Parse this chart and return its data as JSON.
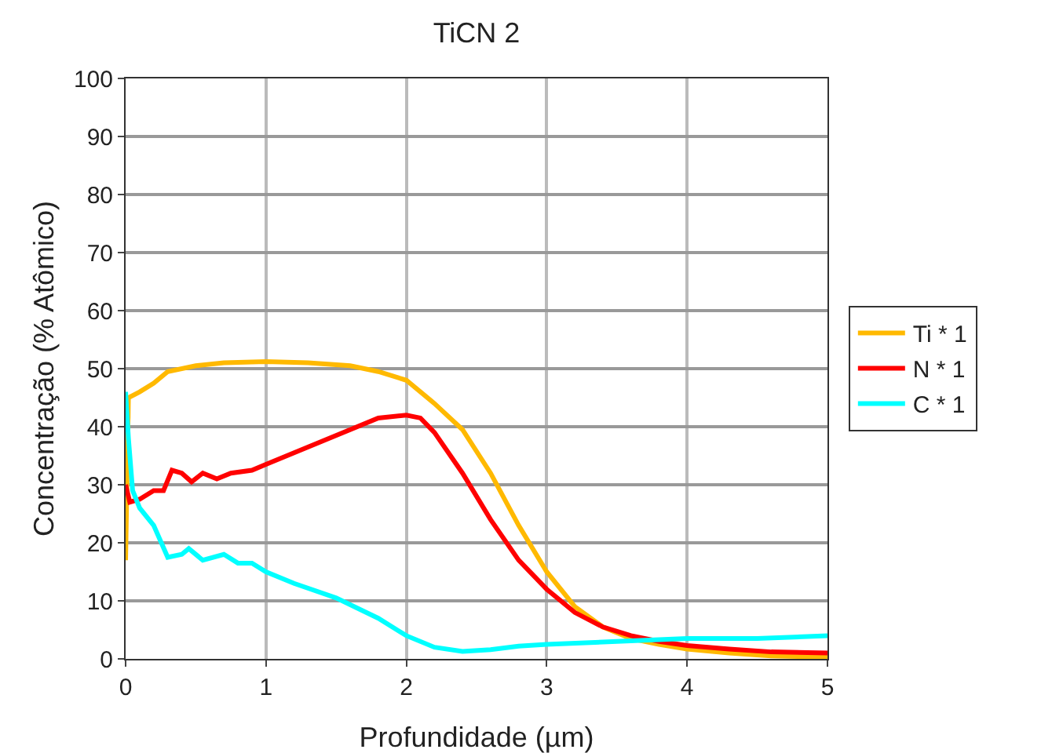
{
  "chart_data": {
    "type": "line",
    "title": "TiCN 2",
    "xlabel": "Profundidade (µm)",
    "ylabel": "Concentração (% Atômico)",
    "xlim": [
      0,
      5
    ],
    "xticks": [
      0,
      1,
      2,
      3,
      4,
      5
    ],
    "ylim": [
      0,
      100
    ],
    "yticks": [
      0,
      10,
      20,
      30,
      40,
      50,
      60,
      70,
      80,
      90,
      100
    ],
    "grid": true,
    "legend": "right",
    "marker": "none",
    "line_style": "solid",
    "series": [
      {
        "name": "Ti * 1",
        "color": "#ffb900",
        "x": [
          0,
          0.02,
          0.1,
          0.2,
          0.3,
          0.5,
          0.7,
          1.0,
          1.3,
          1.6,
          1.8,
          2.0,
          2.2,
          2.4,
          2.6,
          2.8,
          3.0,
          3.2,
          3.4,
          3.6,
          3.8,
          4.0,
          4.3,
          4.6,
          5.0
        ],
        "values": [
          17,
          45,
          46,
          47.5,
          49.5,
          50.5,
          51,
          51.2,
          51,
          50.5,
          49.5,
          48,
          44,
          39.5,
          32,
          23,
          15,
          9,
          5.5,
          3.5,
          2.5,
          1.7,
          1,
          0.5,
          0.3
        ]
      },
      {
        "name": "N * 1",
        "color": "#ff0000",
        "x": [
          0,
          0.03,
          0.1,
          0.2,
          0.27,
          0.33,
          0.4,
          0.47,
          0.55,
          0.65,
          0.75,
          0.9,
          1.0,
          1.2,
          1.4,
          1.6,
          1.8,
          2.0,
          2.1,
          2.2,
          2.4,
          2.6,
          2.8,
          3.0,
          3.2,
          3.4,
          3.6,
          3.8,
          4.0,
          4.3,
          4.6,
          5.0
        ],
        "values": [
          30,
          27,
          27.5,
          29,
          29,
          32.5,
          32,
          30.5,
          32,
          31,
          32,
          32.5,
          33.5,
          35.5,
          37.5,
          39.5,
          41.5,
          42,
          41.5,
          39,
          32,
          24,
          17,
          12,
          8,
          5.5,
          4,
          3,
          2.3,
          1.7,
          1.2,
          1
        ]
      },
      {
        "name": "C * 1",
        "color": "#00ffff",
        "x": [
          0,
          0.02,
          0.05,
          0.1,
          0.2,
          0.3,
          0.4,
          0.45,
          0.55,
          0.7,
          0.8,
          0.9,
          1.0,
          1.2,
          1.5,
          1.8,
          2.0,
          2.2,
          2.4,
          2.6,
          2.8,
          3.0,
          3.5,
          4.0,
          4.5,
          5.0
        ],
        "values": [
          46,
          38,
          29,
          26,
          23,
          17.5,
          18,
          19,
          17,
          18,
          16.5,
          16.5,
          15,
          13,
          10.5,
          7,
          4,
          2,
          1.3,
          1.6,
          2.2,
          2.5,
          3,
          3.5,
          3.5,
          4
        ]
      }
    ]
  }
}
